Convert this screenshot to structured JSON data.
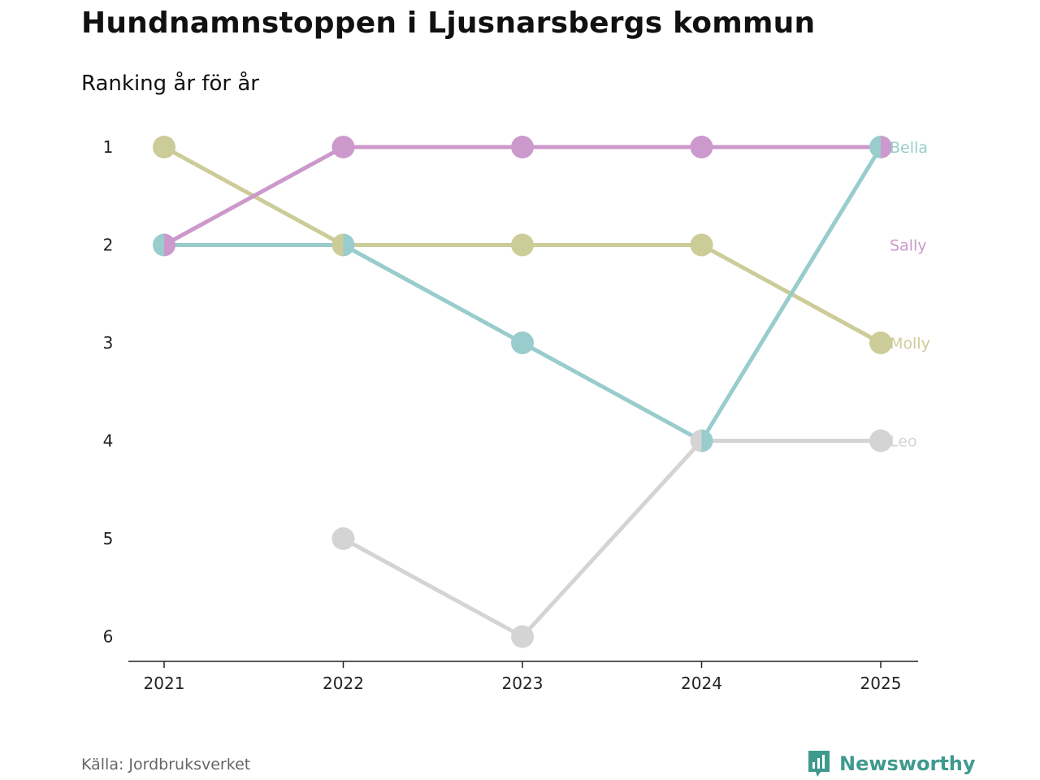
{
  "header": {
    "title": "Hundnamnstoppen i Ljusnarsbergs kommun",
    "subtitle": "Ranking år för år"
  },
  "footer": {
    "source": "Källa: Jordbruksverket",
    "brand": "Newsworthy"
  },
  "chart_data": {
    "type": "line",
    "title": "Hundnamnstoppen i Ljusnarsbergs kommun",
    "subtitle": "Ranking år för år",
    "x": [
      "2021",
      "2022",
      "2023",
      "2024",
      "2025"
    ],
    "y_ticks": [
      "1",
      "2",
      "3",
      "4",
      "5",
      "6"
    ],
    "ylim": [
      1,
      6
    ],
    "y_inverted": true,
    "grid": false,
    "series": [
      {
        "name": "Leo",
        "color": "#d4d4d4",
        "values": [
          null,
          5,
          6,
          4,
          4
        ]
      },
      {
        "name": "Molly",
        "color": "#cccc99",
        "values": [
          1,
          2,
          2,
          2,
          3
        ]
      },
      {
        "name": "Bella",
        "color": "#99cccc",
        "values": [
          2,
          2,
          3,
          4,
          1
        ]
      },
      {
        "name": "Sally",
        "color": "#cc99cc",
        "values": [
          2,
          1,
          1,
          1,
          1
        ]
      }
    ]
  }
}
